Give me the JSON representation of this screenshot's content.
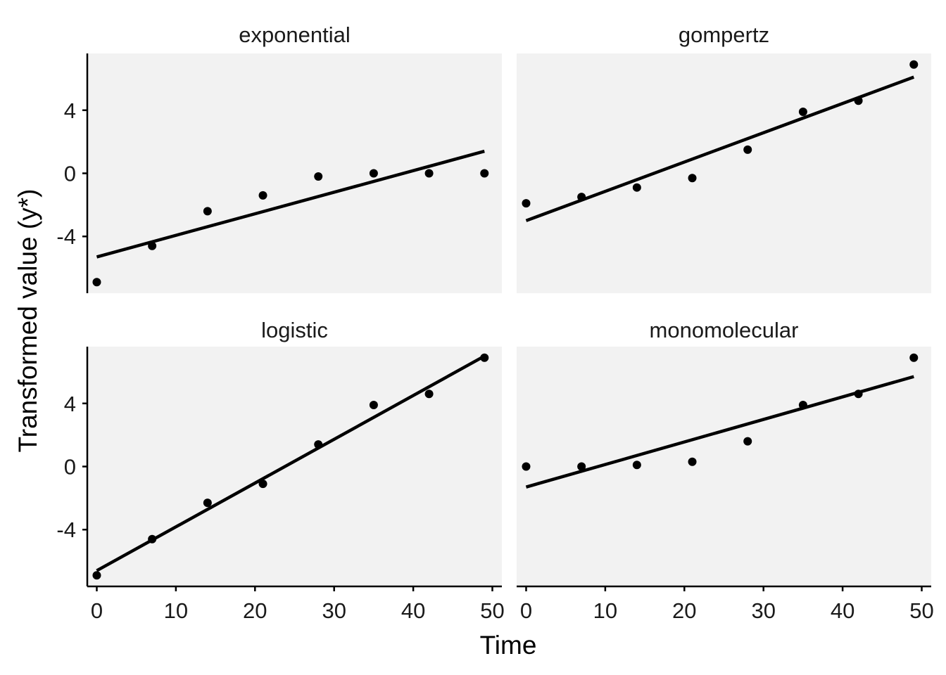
{
  "chart_data": {
    "type": "scatter",
    "facets": [
      {
        "name": "exponential",
        "x": [
          0,
          7,
          14,
          21,
          28,
          35,
          42,
          49
        ],
        "y": [
          -6.9,
          -4.6,
          -2.4,
          -1.4,
          -0.2,
          0,
          0,
          0
        ],
        "fit": [
          -5.3,
          1.4
        ]
      },
      {
        "name": "gompertz",
        "x": [
          0,
          7,
          14,
          21,
          28,
          35,
          42,
          49
        ],
        "y": [
          -1.9,
          -1.5,
          -0.9,
          -0.3,
          1.5,
          3.9,
          4.6,
          6.9
        ],
        "fit": [
          -3.0,
          6.1
        ]
      },
      {
        "name": "logistic",
        "x": [
          0,
          7,
          14,
          21,
          28,
          35,
          42,
          49
        ],
        "y": [
          -6.9,
          -4.6,
          -2.3,
          -1.1,
          1.4,
          3.9,
          4.6,
          6.9
        ],
        "fit": [
          -6.6,
          7.0
        ]
      },
      {
        "name": "monomolecular",
        "x": [
          0,
          7,
          14,
          21,
          28,
          35,
          42,
          49
        ],
        "y": [
          0,
          0,
          0.1,
          0.3,
          1.6,
          3.9,
          4.6,
          6.9
        ],
        "fit": [
          -1.3,
          5.7
        ]
      }
    ],
    "xlabel": "Time",
    "ylabel": "Transformed value (y*)",
    "xticks": [
      "0",
      "10",
      "20",
      "30",
      "40",
      "50"
    ],
    "yticks": [
      "-4",
      "0",
      "4"
    ],
    "xlim": [
      -1.2,
      51.2
    ],
    "ylim": [
      -7.6,
      7.6
    ],
    "grid": false,
    "colors": {
      "panel_bg": "#f2f2f2",
      "points": "#000000",
      "line": "#000000",
      "axis": "#000000"
    }
  }
}
